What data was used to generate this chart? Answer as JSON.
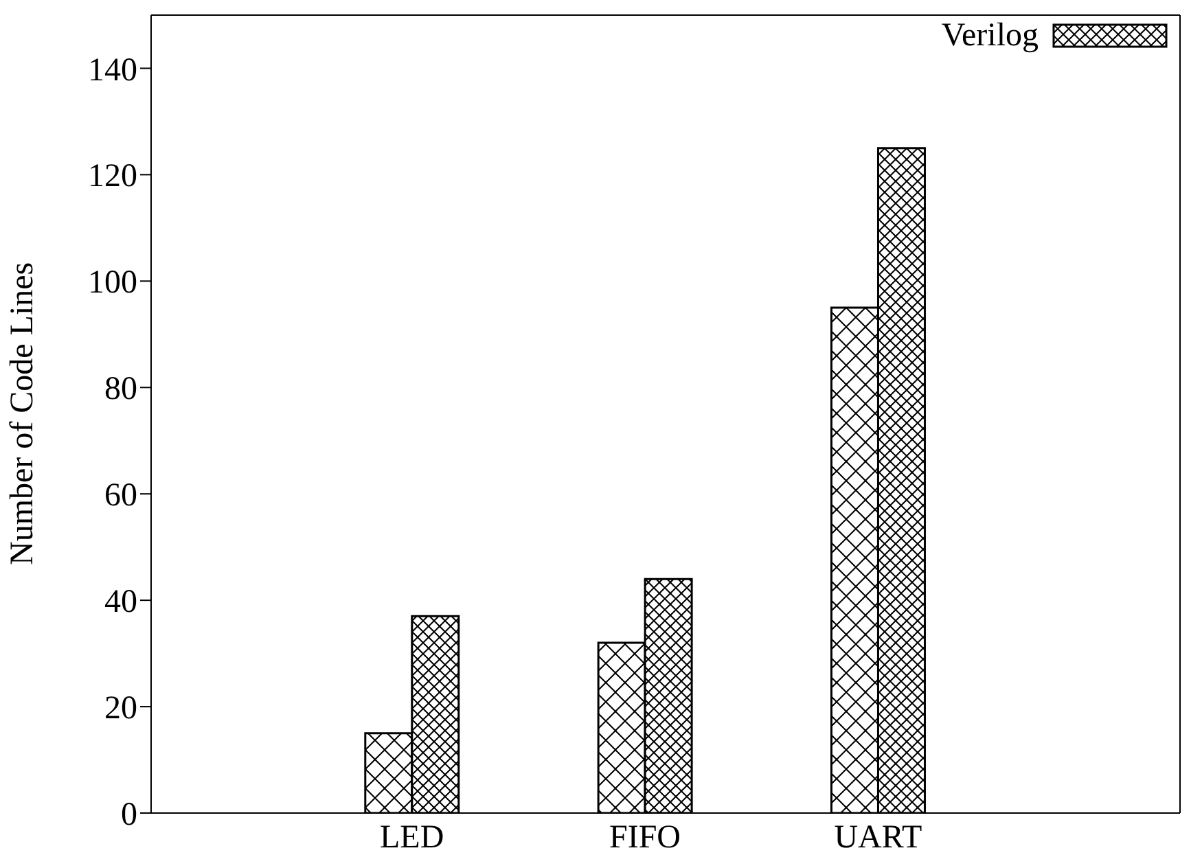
{
  "chart_data": {
    "type": "bar",
    "ylabel": "Number of Code Lines",
    "categories": [
      "LED",
      "FIFO",
      "UART"
    ],
    "series": [
      {
        "color": "#000000",
        "values": [
          15,
          32,
          95
        ]
      },
      {
        "name": "Verilog",
        "color": "#000000",
        "values": [
          37,
          44,
          125
        ]
      }
    ],
    "ylim": [
      0,
      150
    ],
    "yticks": [
      0,
      20,
      40,
      60,
      80,
      100,
      120,
      140
    ],
    "legend": "top right",
    "grid": false
  }
}
